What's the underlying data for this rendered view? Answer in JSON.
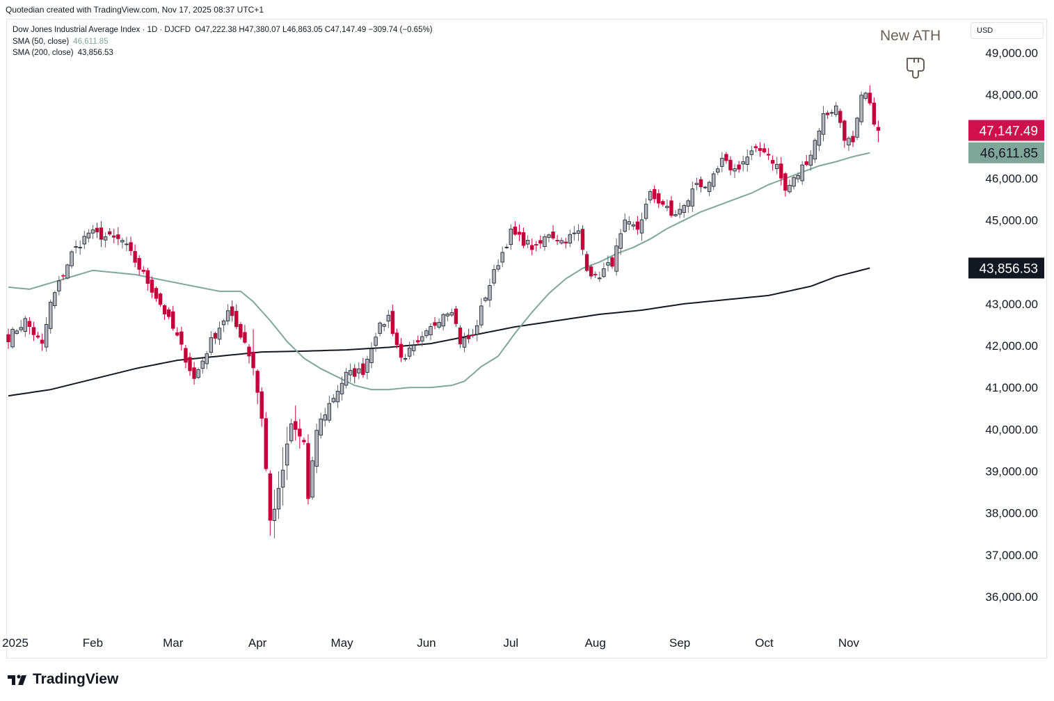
{
  "credit": "Quotedian created with TradingView.com, Nov 17, 2025 08:37 UTC+1",
  "legend": {
    "title": "Dow Jones Industrial Average Index · 1D · DJCFD",
    "ohlc": "O47,222.38  H47,380.07  L46,863.05  C47,147.49  −309.74 (−0.65%)",
    "sma50_label": "SMA (50, close)",
    "sma50_value": "46,611.85",
    "sma200_label": "SMA (200, close)",
    "sma200_value": "43,856.53"
  },
  "currency": "USD",
  "annotation": {
    "text": "New ATH",
    "icon": "pointing-hand-down-icon"
  },
  "brand": "TradingView",
  "colors": {
    "up": "#b2b5be",
    "down": "#c2003a",
    "sma50": "#7fa699",
    "sma200": "#131722",
    "price_badge": "#d0104c",
    "sma50_badge": "#7fa699",
    "sma200_badge": "#131722"
  },
  "chart_data": {
    "type": "candlestick",
    "title": "Dow Jones Industrial Average Index · 1D · DJCFD",
    "ylim": [
      35300,
      49800
    ],
    "y_ticks": [
      {
        "value": 36000,
        "label": "36,000.00"
      },
      {
        "value": 37000,
        "label": "37,000.00"
      },
      {
        "value": 38000,
        "label": "38,000.00"
      },
      {
        "value": 39000,
        "label": "39,000.00"
      },
      {
        "value": 40000,
        "label": "40,000.00"
      },
      {
        "value": 41000,
        "label": "41,000.00"
      },
      {
        "value": 42000,
        "label": "42,000.00"
      },
      {
        "value": 43000,
        "label": "43,000.00"
      },
      {
        "value": 45000,
        "label": "45,000.00"
      },
      {
        "value": 46000,
        "label": "46,000.00"
      },
      {
        "value": 48000,
        "label": "48,000.00"
      },
      {
        "value": 49000,
        "label": "49,000.00"
      }
    ],
    "x_labels": [
      {
        "label": "2025",
        "bar": 0
      },
      {
        "label": "Feb",
        "bar": 20
      },
      {
        "label": "Mar",
        "bar": 39
      },
      {
        "label": "Apr",
        "bar": 59
      },
      {
        "label": "May",
        "bar": 79
      },
      {
        "label": "Jun",
        "bar": 99
      },
      {
        "label": "Jul",
        "bar": 119
      },
      {
        "label": "Aug",
        "bar": 139
      },
      {
        "label": "Sep",
        "bar": 159
      },
      {
        "label": "Oct",
        "bar": 179
      },
      {
        "label": "Nov",
        "bar": 199
      }
    ],
    "badges": [
      {
        "value": 47147.49,
        "label": "47,147.49",
        "kind": "price"
      },
      {
        "value": 46611.85,
        "label": "46,611.85",
        "kind": "sma50"
      },
      {
        "value": 43856.53,
        "label": "43,856.53",
        "kind": "sma200"
      }
    ],
    "anchors": [
      [
        0,
        42200
      ],
      [
        4,
        42600
      ],
      [
        8,
        42000
      ],
      [
        10,
        43000
      ],
      [
        15,
        44200
      ],
      [
        19,
        44700
      ],
      [
        23,
        44600
      ],
      [
        27,
        44500
      ],
      [
        32,
        43700
      ],
      [
        36,
        43000
      ],
      [
        40,
        42200
      ],
      [
        44,
        41200
      ],
      [
        48,
        42100
      ],
      [
        52,
        42800
      ],
      [
        56,
        42100
      ],
      [
        58,
        41500
      ],
      [
        60,
        40300
      ],
      [
        62,
        37800
      ],
      [
        64,
        38500
      ],
      [
        67,
        40100
      ],
      [
        70,
        39700
      ],
      [
        71,
        38300
      ],
      [
        73,
        40000
      ],
      [
        76,
        40600
      ],
      [
        80,
        41300
      ],
      [
        84,
        41400
      ],
      [
        87,
        42300
      ],
      [
        90,
        42700
      ],
      [
        93,
        41700
      ],
      [
        97,
        42000
      ],
      [
        100,
        42400
      ],
      [
        103,
        42800
      ],
      [
        105,
        42900
      ],
      [
        107,
        42100
      ],
      [
        110,
        42200
      ],
      [
        113,
        43200
      ],
      [
        116,
        44000
      ],
      [
        119,
        44700
      ],
      [
        122,
        44500
      ],
      [
        125,
        44300
      ],
      [
        128,
        44700
      ],
      [
        131,
        44500
      ],
      [
        135,
        44700
      ],
      [
        137,
        43900
      ],
      [
        139,
        43600
      ],
      [
        143,
        44000
      ],
      [
        146,
        44900
      ],
      [
        149,
        44800
      ],
      [
        152,
        45600
      ],
      [
        155,
        45400
      ],
      [
        157,
        45100
      ],
      [
        160,
        45300
      ],
      [
        163,
        45900
      ],
      [
        166,
        45800
      ],
      [
        169,
        46400
      ],
      [
        172,
        46200
      ],
      [
        176,
        46600
      ],
      [
        179,
        46700
      ],
      [
        182,
        46300
      ],
      [
        184,
        45700
      ],
      [
        187,
        46100
      ],
      [
        190,
        46600
      ],
      [
        193,
        47500
      ],
      [
        196,
        47700
      ],
      [
        198,
        47000
      ],
      [
        200,
        46800
      ],
      [
        202,
        47900
      ],
      [
        203,
        48000
      ],
      [
        205,
        47400
      ],
      [
        206,
        47150
      ]
    ],
    "candles": [],
    "series": [
      {
        "name": "SMA (50, close)",
        "last": 46611.85,
        "points": [
          [
            0,
            43400
          ],
          [
            5,
            43350
          ],
          [
            10,
            43500
          ],
          [
            15,
            43650
          ],
          [
            20,
            43800
          ],
          [
            25,
            43750
          ],
          [
            30,
            43700
          ],
          [
            35,
            43600
          ],
          [
            40,
            43500
          ],
          [
            45,
            43400
          ],
          [
            50,
            43300
          ],
          [
            55,
            43300
          ],
          [
            58,
            43050
          ],
          [
            62,
            42600
          ],
          [
            66,
            42100
          ],
          [
            70,
            41700
          ],
          [
            74,
            41450
          ],
          [
            78,
            41250
          ],
          [
            82,
            41050
          ],
          [
            86,
            40950
          ],
          [
            90,
            40950
          ],
          [
            95,
            41000
          ],
          [
            100,
            41000
          ],
          [
            105,
            41050
          ],
          [
            108,
            41150
          ],
          [
            112,
            41500
          ],
          [
            116,
            41750
          ],
          [
            120,
            42300
          ],
          [
            124,
            42800
          ],
          [
            128,
            43250
          ],
          [
            132,
            43600
          ],
          [
            136,
            43850
          ],
          [
            140,
            44000
          ],
          [
            144,
            44200
          ],
          [
            148,
            44350
          ],
          [
            152,
            44550
          ],
          [
            156,
            44800
          ],
          [
            160,
            45000
          ],
          [
            164,
            45200
          ],
          [
            168,
            45350
          ],
          [
            172,
            45500
          ],
          [
            176,
            45650
          ],
          [
            180,
            45850
          ],
          [
            184,
            46000
          ],
          [
            188,
            46150
          ],
          [
            192,
            46300
          ],
          [
            196,
            46400
          ],
          [
            200,
            46520
          ],
          [
            204,
            46611.85
          ]
        ]
      },
      {
        "name": "SMA (200, close)",
        "last": 43856.53,
        "points": [
          [
            0,
            40800
          ],
          [
            10,
            40950
          ],
          [
            20,
            41200
          ],
          [
            30,
            41450
          ],
          [
            40,
            41650
          ],
          [
            50,
            41750
          ],
          [
            60,
            41850
          ],
          [
            70,
            41870
          ],
          [
            80,
            41900
          ],
          [
            90,
            41960
          ],
          [
            100,
            42050
          ],
          [
            110,
            42250
          ],
          [
            120,
            42450
          ],
          [
            130,
            42600
          ],
          [
            140,
            42750
          ],
          [
            150,
            42850
          ],
          [
            160,
            43000
          ],
          [
            170,
            43100
          ],
          [
            180,
            43200
          ],
          [
            190,
            43420
          ],
          [
            196,
            43650
          ],
          [
            204,
            43856.53
          ]
        ]
      }
    ]
  }
}
